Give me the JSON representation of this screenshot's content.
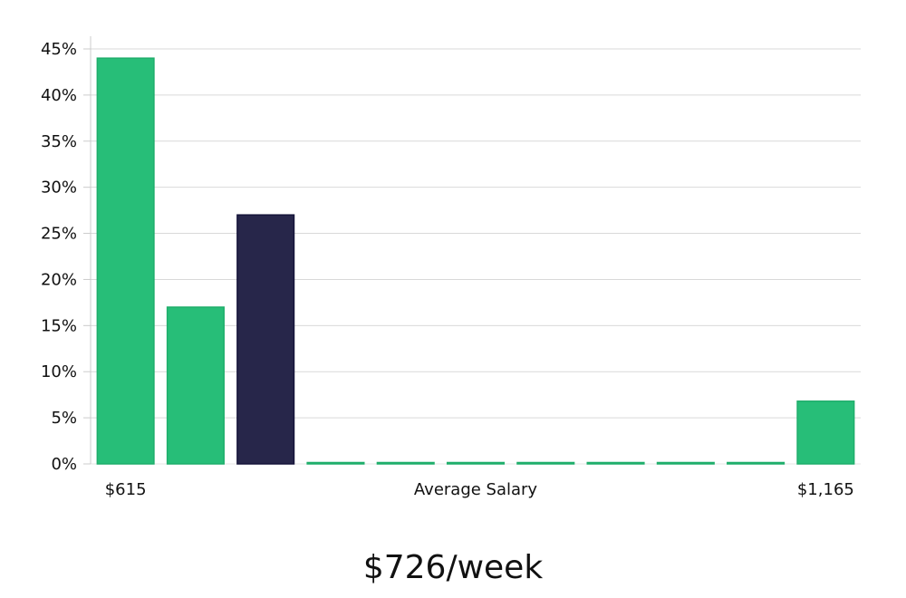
{
  "headline": "$726/week",
  "chart_data": {
    "type": "bar",
    "title": "",
    "xlabel": "Average Salary",
    "ylabel": "",
    "ylim": [
      0,
      45
    ],
    "yticks": [
      0,
      5,
      10,
      15,
      20,
      25,
      30,
      35,
      40,
      45
    ],
    "ytick_format": "percent",
    "x_range_labels": {
      "min": "$615",
      "max": "$1,165"
    },
    "bins": 11,
    "values": [
      44,
      17,
      27,
      0,
      0,
      0,
      0,
      0,
      0,
      0,
      6.8
    ],
    "highlight_index": 2,
    "grid": true,
    "colors": {
      "bar": "#27be78",
      "highlight": "#27264a",
      "grid": "#d9d9d9"
    }
  }
}
